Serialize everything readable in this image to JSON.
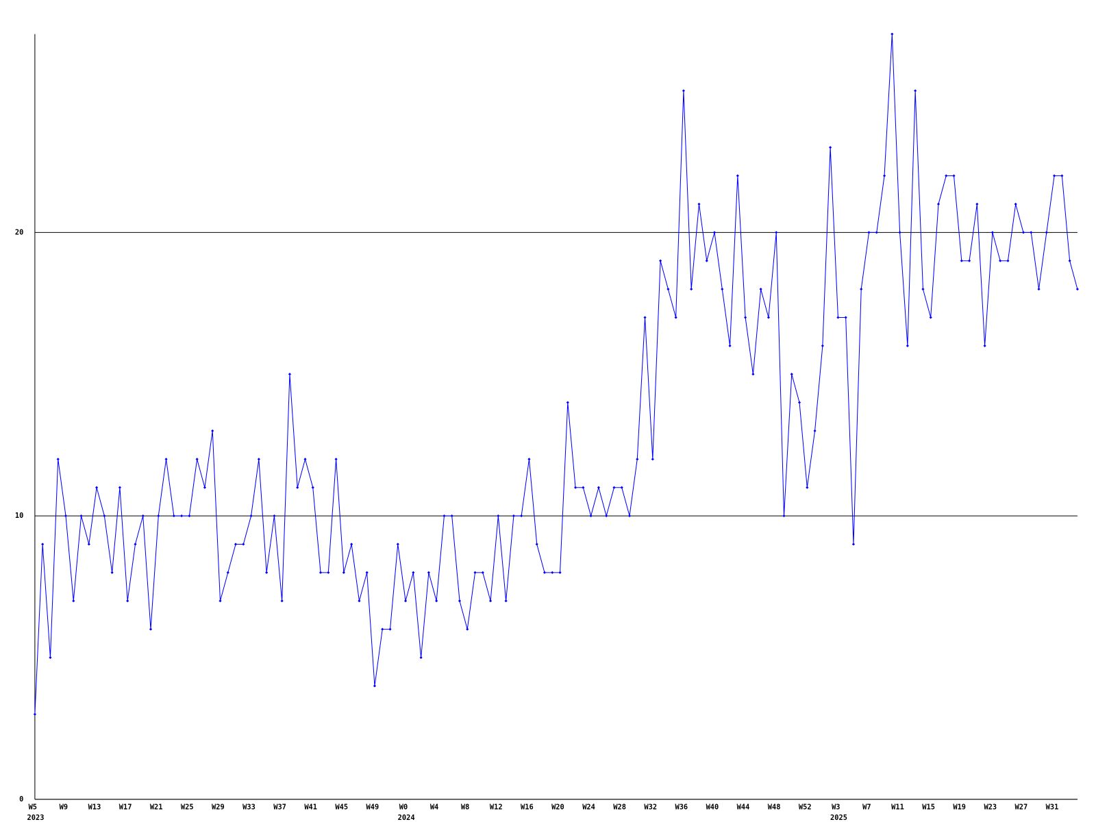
{
  "chart_data": {
    "type": "line",
    "color": "#0000ff",
    "grid": true,
    "categories": [
      "W5",
      null,
      null,
      null,
      "W9",
      null,
      null,
      null,
      "W13",
      null,
      null,
      null,
      "W17",
      null,
      null,
      null,
      "W21",
      null,
      null,
      null,
      "W25",
      null,
      null,
      null,
      "W29",
      null,
      null,
      null,
      "W33",
      null,
      null,
      null,
      "W37",
      null,
      null,
      null,
      "W41",
      null,
      null,
      null,
      "W45",
      null,
      null,
      null,
      "W49",
      null,
      null,
      null,
      "W0",
      null,
      null,
      null,
      "W4",
      null,
      null,
      null,
      "W8",
      null,
      null,
      null,
      "W12",
      null,
      null,
      null,
      "W16",
      null,
      null,
      null,
      "W20",
      null,
      null,
      null,
      "W24",
      null,
      null,
      null,
      "W28",
      null,
      null,
      null,
      "W32",
      null,
      null,
      null,
      "W36",
      null,
      null,
      null,
      "W40",
      null,
      null,
      null,
      "W44",
      null,
      null,
      null,
      "W48",
      null,
      null,
      null,
      "W52",
      null,
      null,
      null,
      "W3",
      null,
      null,
      null,
      "W7",
      null,
      null,
      null,
      "W11",
      null,
      null,
      null,
      "W15",
      null,
      null,
      null,
      "W19",
      null,
      null,
      null,
      "W23",
      null,
      null,
      null,
      "W27",
      null,
      null,
      null,
      "W31",
      null,
      null,
      null
    ],
    "category_years": [
      "2023",
      null,
      null,
      null,
      null,
      null,
      null,
      null,
      null,
      null,
      null,
      null,
      null,
      null,
      null,
      null,
      null,
      null,
      null,
      null,
      null,
      null,
      null,
      null,
      null,
      null,
      null,
      null,
      null,
      null,
      null,
      null,
      null,
      null,
      null,
      null,
      null,
      null,
      null,
      null,
      null,
      null,
      null,
      null,
      null,
      null,
      null,
      null,
      "2024",
      null,
      null,
      null,
      null,
      null,
      null,
      null,
      null,
      null,
      null,
      null,
      null,
      null,
      null,
      null,
      null,
      null,
      null,
      null,
      null,
      null,
      null,
      null,
      null,
      null,
      null,
      null,
      null,
      null,
      null,
      null,
      null,
      null,
      null,
      null,
      null,
      null,
      null,
      null,
      null,
      null,
      null,
      null,
      null,
      null,
      null,
      null,
      null,
      null,
      null,
      null,
      null,
      null,
      null,
      null,
      "2025",
      null,
      null,
      null,
      null,
      null,
      null,
      null,
      null,
      null,
      null,
      null,
      null,
      null,
      null,
      null,
      null,
      null,
      null,
      null,
      null,
      null,
      null,
      null,
      null,
      null,
      null,
      null,
      null,
      null,
      null,
      null
    ],
    "values": [
      3,
      9,
      5,
      12,
      10,
      7,
      10,
      9,
      11,
      10,
      8,
      11,
      7,
      9,
      10,
      6,
      10,
      12,
      10,
      10,
      10,
      12,
      11,
      13,
      7,
      8,
      9,
      9,
      10,
      12,
      8,
      10,
      7,
      15,
      11,
      12,
      11,
      8,
      8,
      12,
      8,
      9,
      7,
      8,
      4,
      6,
      6,
      9,
      7,
      8,
      5,
      8,
      7,
      10,
      10,
      7,
      6,
      8,
      8,
      7,
      10,
      7,
      10,
      10,
      12,
      9,
      8,
      8,
      8,
      14,
      11,
      11,
      10,
      11,
      10,
      11,
      11,
      10,
      12,
      17,
      12,
      19,
      18,
      17,
      25,
      18,
      21,
      19,
      20,
      18,
      16,
      22,
      17,
      15,
      18,
      17,
      20,
      10,
      15,
      14,
      11,
      13,
      16,
      23,
      17,
      17,
      9,
      18,
      20,
      20,
      22,
      27,
      20,
      16,
      25,
      18,
      17,
      21,
      22,
      22,
      19,
      19,
      21,
      16,
      20,
      19,
      19,
      21,
      20,
      20,
      18,
      20,
      22,
      22,
      19,
      18
    ],
    "ylim": [
      0,
      27
    ],
    "yticks": [
      0,
      10,
      20
    ]
  }
}
